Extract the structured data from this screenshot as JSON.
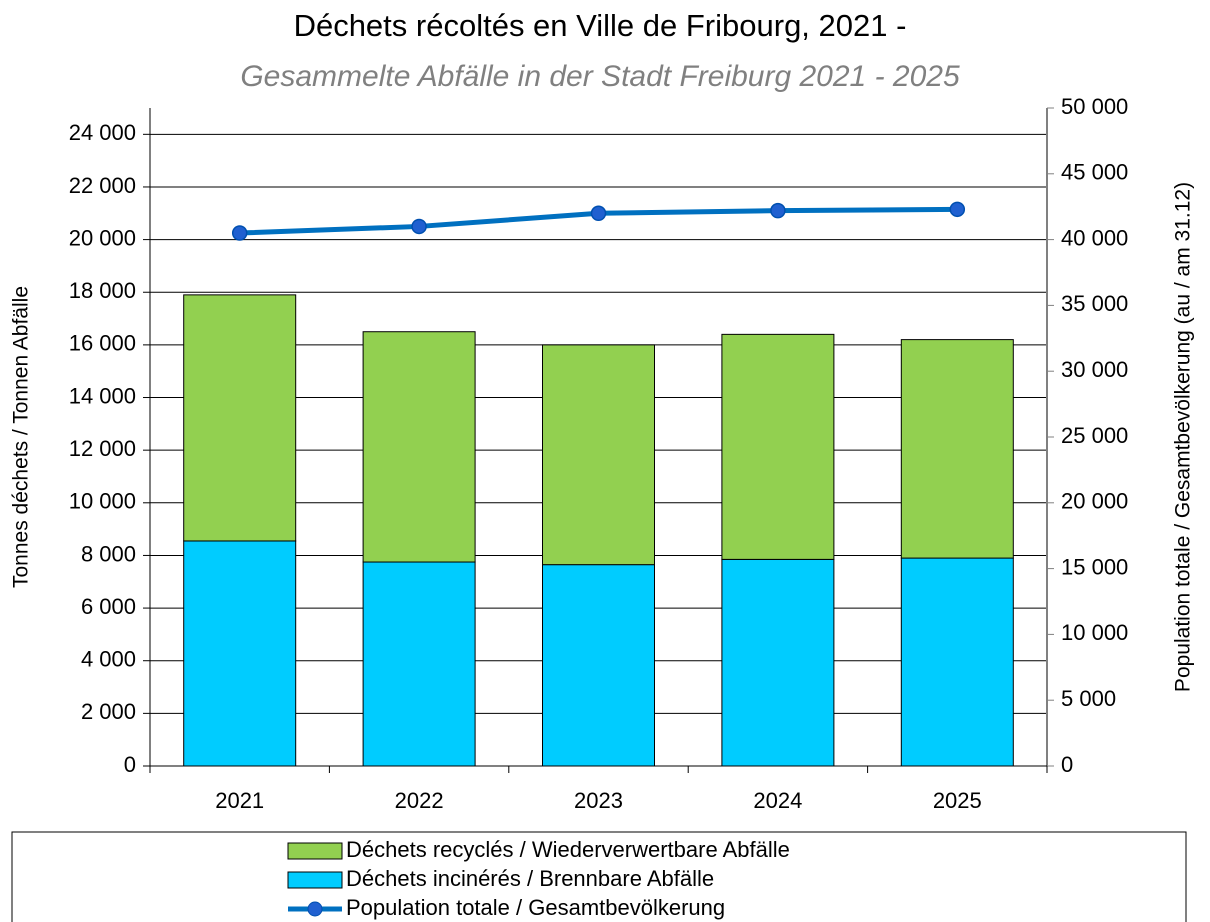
{
  "chart_data": {
    "type": "bar",
    "title": "Déchets récoltés en Ville de Fribourg, 2021 -",
    "subtitle": "Gesammelte Abfälle in der Stadt Freiburg 2021 - 2025",
    "y_label": "Tonnes déchets / Tonnen Abfälle",
    "y2_label": "Population totale / Gesamtbevölkerung (au / am 31.12)",
    "categories": [
      "2021",
      "2022",
      "2023",
      "2024",
      "2025"
    ],
    "series": [
      {
        "name": "Déchets recyclés / Wiederverwertbare Abfälle",
        "type": "bar",
        "color": "#92d050",
        "values": [
          9350,
          8750,
          8350,
          8550,
          8300
        ]
      },
      {
        "name": "Déchets incinérés / Brennbare Abfälle",
        "type": "bar",
        "color": "#00ccff",
        "values": [
          8550,
          7750,
          7650,
          7850,
          7900
        ]
      },
      {
        "name": "Population totale / Gesamtbevölkerung",
        "type": "line",
        "axis": "y2",
        "color": "#0070c0",
        "values": [
          40500,
          41000,
          42000,
          42200,
          42300
        ]
      }
    ],
    "stacked": true,
    "ylim": [
      0,
      25000
    ],
    "yticks": [
      0,
      {
        "value": 2000,
        "label": "2 000"
      },
      {
        "value": 4000,
        "label": "4 000"
      },
      {
        "value": 6000,
        "label": "6 000"
      },
      {
        "value": 8000,
        "label": "8 000"
      },
      {
        "value": 10000,
        "label": "10 000"
      },
      {
        "value": 12000,
        "label": "12 000"
      },
      {
        "value": 14000,
        "label": "14 000"
      },
      {
        "value": 16000,
        "label": "16 000"
      },
      {
        "value": 18000,
        "label": "18 000"
      },
      {
        "value": 20000,
        "label": "20 000"
      },
      {
        "value": 22000,
        "label": "22 000"
      },
      {
        "value": 24000,
        "label": "24 000"
      }
    ],
    "y2lim": [
      0,
      50000
    ],
    "y2ticks": [
      0,
      {
        "value": 5000,
        "label": "5 000"
      },
      {
        "value": 10000,
        "label": "10 000"
      },
      {
        "value": 15000,
        "label": "15 000"
      },
      {
        "value": 20000,
        "label": "20 000"
      },
      {
        "value": 25000,
        "label": "25 000"
      },
      {
        "value": 30000,
        "label": "30 000"
      },
      {
        "value": 35000,
        "label": "35 000"
      },
      {
        "value": 40000,
        "label": "40 000"
      },
      {
        "value": 45000,
        "label": "45 000"
      },
      {
        "value": 50000,
        "label": "50 000"
      }
    ],
    "grid": true,
    "legend": "bottom"
  }
}
